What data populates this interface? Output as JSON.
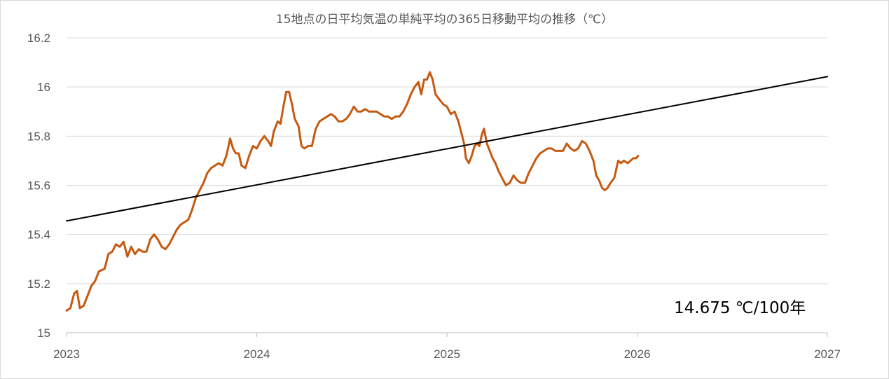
{
  "chart_data": {
    "type": "line",
    "title": "15地点の日平均気温の単純平均の365日移動平均の推移（℃）",
    "xlabel": "",
    "ylabel": "",
    "xlim": [
      2023,
      2027
    ],
    "ylim": [
      15.0,
      16.2
    ],
    "x_ticks": [
      "2023",
      "2024",
      "2025",
      "2026",
      "2027"
    ],
    "y_ticks": [
      "15",
      "15.2",
      "15.4",
      "15.6",
      "15.8",
      "16",
      "16.2"
    ],
    "grid": "horizontal",
    "legend": "none",
    "annotation": "14.675 ℃/100年",
    "series": [
      {
        "color": "#C55A11",
        "points": [
          [
            2023.0,
            15.09
          ],
          [
            2023.02,
            15.1
          ],
          [
            2023.04,
            15.16
          ],
          [
            2023.055,
            15.17
          ],
          [
            2023.07,
            15.1
          ],
          [
            2023.09,
            15.11
          ],
          [
            2023.11,
            15.15
          ],
          [
            2023.13,
            15.19
          ],
          [
            2023.15,
            15.21
          ],
          [
            2023.17,
            15.25
          ],
          [
            2023.2,
            15.26
          ],
          [
            2023.22,
            15.32
          ],
          [
            2023.24,
            15.33
          ],
          [
            2023.26,
            15.36
          ],
          [
            2023.28,
            15.35
          ],
          [
            2023.3,
            15.37
          ],
          [
            2023.32,
            15.31
          ],
          [
            2023.34,
            15.35
          ],
          [
            2023.36,
            15.32
          ],
          [
            2023.38,
            15.34
          ],
          [
            2023.4,
            15.33
          ],
          [
            2023.42,
            15.33
          ],
          [
            2023.44,
            15.38
          ],
          [
            2023.46,
            15.4
          ],
          [
            2023.48,
            15.38
          ],
          [
            2023.5,
            15.35
          ],
          [
            2023.52,
            15.34
          ],
          [
            2023.54,
            15.36
          ],
          [
            2023.56,
            15.39
          ],
          [
            2023.58,
            15.42
          ],
          [
            2023.6,
            15.44
          ],
          [
            2023.62,
            15.45
          ],
          [
            2023.64,
            15.46
          ],
          [
            2023.66,
            15.5
          ],
          [
            2023.68,
            15.55
          ],
          [
            2023.7,
            15.58
          ],
          [
            2023.72,
            15.61
          ],
          [
            2023.74,
            15.65
          ],
          [
            2023.76,
            15.67
          ],
          [
            2023.78,
            15.68
          ],
          [
            2023.8,
            15.69
          ],
          [
            2023.82,
            15.68
          ],
          [
            2023.84,
            15.72
          ],
          [
            2023.86,
            15.79
          ],
          [
            2023.875,
            15.75
          ],
          [
            2023.89,
            15.73
          ],
          [
            2023.905,
            15.73
          ],
          [
            2023.92,
            15.68
          ],
          [
            2023.94,
            15.67
          ],
          [
            2023.96,
            15.72
          ],
          [
            2023.98,
            15.76
          ],
          [
            2024.0,
            15.75
          ],
          [
            2024.02,
            15.78
          ],
          [
            2024.04,
            15.8
          ],
          [
            2024.06,
            15.78
          ],
          [
            2024.075,
            15.76
          ],
          [
            2024.09,
            15.82
          ],
          [
            2024.11,
            15.86
          ],
          [
            2024.125,
            15.85
          ],
          [
            2024.14,
            15.92
          ],
          [
            2024.155,
            15.98
          ],
          [
            2024.17,
            15.98
          ],
          [
            2024.185,
            15.93
          ],
          [
            2024.2,
            15.87
          ],
          [
            2024.22,
            15.84
          ],
          [
            2024.235,
            15.76
          ],
          [
            2024.25,
            15.75
          ],
          [
            2024.27,
            15.76
          ],
          [
            2024.29,
            15.76
          ],
          [
            2024.31,
            15.83
          ],
          [
            2024.33,
            15.86
          ],
          [
            2024.35,
            15.87
          ],
          [
            2024.37,
            15.88
          ],
          [
            2024.39,
            15.89
          ],
          [
            2024.41,
            15.88
          ],
          [
            2024.43,
            15.86
          ],
          [
            2024.45,
            15.86
          ],
          [
            2024.47,
            15.87
          ],
          [
            2024.49,
            15.89
          ],
          [
            2024.51,
            15.92
          ],
          [
            2024.53,
            15.9
          ],
          [
            2024.55,
            15.9
          ],
          [
            2024.57,
            15.91
          ],
          [
            2024.59,
            15.9
          ],
          [
            2024.61,
            15.9
          ],
          [
            2024.63,
            15.9
          ],
          [
            2024.65,
            15.89
          ],
          [
            2024.67,
            15.88
          ],
          [
            2024.69,
            15.88
          ],
          [
            2024.71,
            15.87
          ],
          [
            2024.73,
            15.88
          ],
          [
            2024.75,
            15.88
          ],
          [
            2024.77,
            15.9
          ],
          [
            2024.79,
            15.93
          ],
          [
            2024.81,
            15.97
          ],
          [
            2024.83,
            16.0
          ],
          [
            2024.85,
            16.02
          ],
          [
            2024.865,
            15.97
          ],
          [
            2024.88,
            16.03
          ],
          [
            2024.895,
            16.03
          ],
          [
            2024.91,
            16.06
          ],
          [
            2024.925,
            16.03
          ],
          [
            2024.94,
            15.97
          ],
          [
            2024.96,
            15.95
          ],
          [
            2024.98,
            15.93
          ],
          [
            2025.0,
            15.92
          ],
          [
            2025.02,
            15.89
          ],
          [
            2025.04,
            15.9
          ],
          [
            2025.06,
            15.86
          ],
          [
            2025.08,
            15.8
          ],
          [
            2025.09,
            15.77
          ],
          [
            2025.1,
            15.71
          ],
          [
            2025.115,
            15.69
          ],
          [
            2025.13,
            15.72
          ],
          [
            2025.145,
            15.76
          ],
          [
            2025.16,
            15.77
          ],
          [
            2025.17,
            15.76
          ],
          [
            2025.185,
            15.81
          ],
          [
            2025.195,
            15.83
          ],
          [
            2025.21,
            15.77
          ],
          [
            2025.225,
            15.74
          ],
          [
            2025.24,
            15.71
          ],
          [
            2025.255,
            15.69
          ],
          [
            2025.27,
            15.66
          ],
          [
            2025.29,
            15.63
          ],
          [
            2025.31,
            15.6
          ],
          [
            2025.33,
            15.61
          ],
          [
            2025.35,
            15.64
          ],
          [
            2025.37,
            15.62
          ],
          [
            2025.39,
            15.61
          ],
          [
            2025.41,
            15.61
          ],
          [
            2025.43,
            15.65
          ],
          [
            2025.45,
            15.68
          ],
          [
            2025.47,
            15.71
          ],
          [
            2025.49,
            15.73
          ],
          [
            2025.51,
            15.74
          ],
          [
            2025.53,
            15.75
          ],
          [
            2025.55,
            15.75
          ],
          [
            2025.57,
            15.74
          ],
          [
            2025.59,
            15.74
          ],
          [
            2025.61,
            15.74
          ],
          [
            2025.63,
            15.77
          ],
          [
            2025.65,
            15.75
          ],
          [
            2025.67,
            15.74
          ],
          [
            2025.69,
            15.75
          ],
          [
            2025.71,
            15.78
          ],
          [
            2025.73,
            15.77
          ],
          [
            2025.75,
            15.74
          ],
          [
            2025.77,
            15.7
          ],
          [
            2025.785,
            15.64
          ],
          [
            2025.8,
            15.62
          ],
          [
            2025.815,
            15.59
          ],
          [
            2025.83,
            15.58
          ],
          [
            2025.845,
            15.59
          ],
          [
            2025.86,
            15.61
          ],
          [
            2025.88,
            15.63
          ],
          [
            2025.9,
            15.7
          ],
          [
            2025.915,
            15.69
          ],
          [
            2025.93,
            15.7
          ],
          [
            2025.95,
            15.69
          ],
          [
            2025.965,
            15.7
          ],
          [
            2025.98,
            15.71
          ],
          [
            2025.995,
            15.71
          ],
          [
            2026.005,
            15.72
          ]
        ]
      },
      {
        "color": "#000000",
        "points": [
          [
            2023.0,
            15.455
          ],
          [
            2027.0,
            16.042
          ]
        ]
      }
    ]
  }
}
